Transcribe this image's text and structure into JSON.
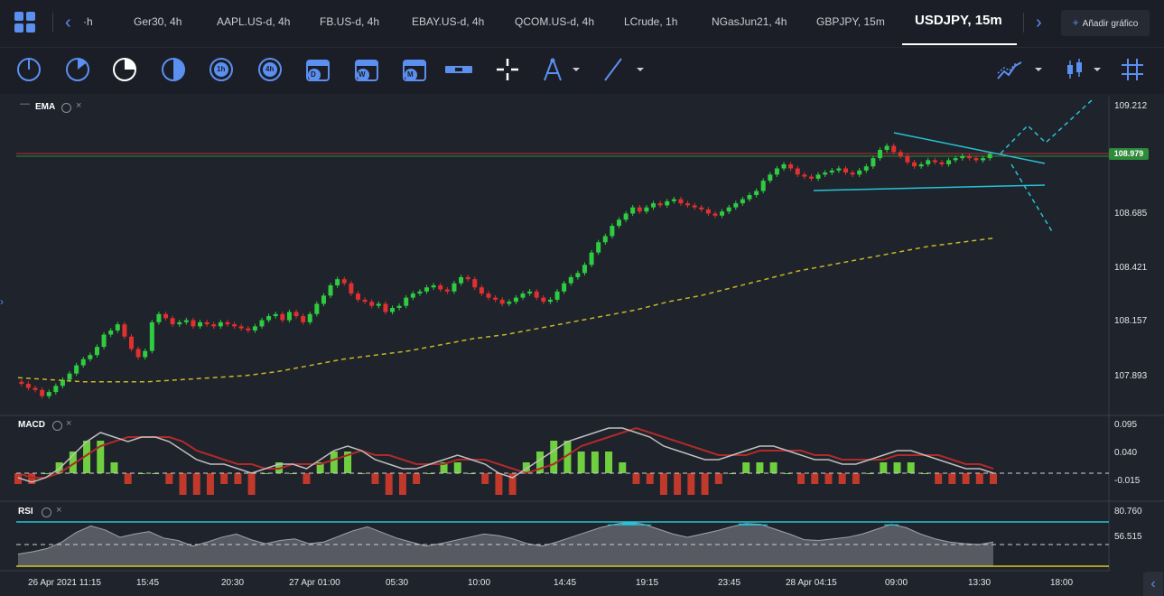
{
  "tabs": {
    "items": [
      "·h",
      "Ger30, 4h",
      "AAPL.US-d, 4h",
      "FB.US-d, 4h",
      "EBAY.US-d, 4h",
      "QCOM.US-d, 4h",
      "LCrude, 1h",
      "NGasJun21, 4h",
      "GBPJPY, 15m",
      "USDJPY, 15m"
    ],
    "active_index": 9,
    "add_chart_label": "Añadir gráfico",
    "add_chart_plus": "+"
  },
  "toolbar": {
    "tools": [
      "timeframe-1-icon",
      "timeframe-2-icon",
      "timeframe-3-icon",
      "timeframe-4-icon",
      "timeframe-1h-icon",
      "timeframe-4h-icon",
      "calendar-day-icon",
      "calendar-week-icon",
      "calendar-month-icon",
      "ruler-icon",
      "crosshair-icon",
      "compass-icon",
      "trendline-icon",
      "chart-type-icon",
      "candlestick-icon",
      "grid-icon"
    ],
    "label_1h": "1h",
    "label_4h": "4h",
    "label_d": "D",
    "label_w": "W",
    "label_m": "M"
  },
  "indicators": {
    "ema_label": "EMA",
    "macd_label": "MACD",
    "rsi_label": "RSI",
    "close_glyph": "×",
    "collapse_glyph": "—"
  },
  "price_axis": {
    "labels": [
      "109.212",
      "108.685",
      "108.421",
      "108.157",
      "107.893"
    ],
    "current_price": "108.979",
    "current_price_color": "#2e8b3a"
  },
  "macd_axis": {
    "labels": [
      "0.095",
      "0.040",
      "-0.015"
    ]
  },
  "rsi_axis": {
    "labels": [
      "80.760",
      "56.515"
    ]
  },
  "time_axis": {
    "labels": [
      "26 Apr 2021 11:15",
      "15:45",
      "20:30",
      "27 Apr 01:00",
      "05:30",
      "10:00",
      "14:45",
      "19:15",
      "23:45",
      "28 Apr 04:15",
      "09:00",
      "13:30",
      "18:00"
    ]
  },
  "colors": {
    "accent": "#5b8ff0",
    "bull": "#2ecc40",
    "bear": "#e0302f",
    "ema": "#c8b52a",
    "trendline": "#27c2d6",
    "rsi_band": "#27c2d6"
  },
  "chart_data": {
    "type": "candlestick",
    "symbol": "USDJPY, 15m",
    "ylim": [
      107.75,
      109.26
    ],
    "close_series": [
      107.86,
      107.84,
      107.83,
      107.8,
      107.82,
      107.85,
      107.88,
      107.91,
      107.95,
      107.98,
      108.0,
      108.04,
      108.1,
      108.12,
      108.15,
      108.09,
      108.03,
      107.99,
      108.02,
      108.16,
      108.2,
      108.18,
      108.15,
      108.16,
      108.17,
      108.14,
      108.16,
      108.15,
      108.14,
      108.16,
      108.15,
      108.14,
      108.13,
      108.12,
      108.14,
      108.17,
      108.19,
      108.2,
      108.17,
      108.21,
      108.19,
      108.16,
      108.2,
      108.25,
      108.29,
      108.34,
      108.37,
      108.35,
      108.3,
      108.27,
      108.26,
      108.24,
      108.25,
      108.21,
      108.23,
      108.24,
      108.28,
      108.3,
      108.31,
      108.33,
      108.34,
      108.32,
      108.31,
      108.35,
      108.38,
      108.37,
      108.33,
      108.3,
      108.28,
      108.27,
      108.25,
      108.26,
      108.28,
      108.3,
      108.31,
      108.28,
      108.26,
      108.27,
      108.31,
      108.35,
      108.38,
      108.4,
      108.44,
      108.5,
      108.55,
      108.58,
      108.63,
      108.66,
      108.69,
      108.72,
      108.7,
      108.72,
      108.74,
      108.73,
      108.75,
      108.76,
      108.74,
      108.73,
      108.72,
      108.71,
      108.69,
      108.68,
      108.7,
      108.72,
      108.74,
      108.76,
      108.78,
      108.8,
      108.85,
      108.88,
      108.91,
      108.93,
      108.91,
      108.88,
      108.87,
      108.86,
      108.88,
      108.89,
      108.9,
      108.91,
      108.89,
      108.88,
      108.9,
      108.92,
      108.96,
      109.0,
      109.02,
      108.99,
      108.97,
      108.94,
      108.92,
      108.93,
      108.95,
      108.94,
      108.93,
      108.95,
      108.96,
      108.97,
      108.96,
      108.95,
      108.96,
      108.98
    ],
    "ema_series": [
      107.89,
      107.88,
      107.87,
      107.87,
      107.87,
      107.88,
      107.89,
      107.9,
      107.92,
      107.95,
      107.98,
      108.0,
      108.02,
      108.05,
      108.08,
      108.1,
      108.13,
      108.16,
      108.19,
      108.22,
      108.26,
      108.29,
      108.33,
      108.37,
      108.41,
      108.44,
      108.47,
      108.5,
      108.53,
      108.55,
      108.57
    ],
    "macd_series": [
      -0.01,
      -0.02,
      -0.01,
      0.01,
      0.04,
      0.07,
      0.09,
      0.08,
      0.07,
      0.08,
      0.08,
      0.07,
      0.05,
      0.03,
      0.02,
      0.02,
      0.01,
      0.0,
      0.01,
      0.02,
      0.02,
      0.01,
      0.03,
      0.05,
      0.06,
      0.05,
      0.03,
      0.02,
      0.01,
      0.01,
      0.02,
      0.03,
      0.04,
      0.03,
      0.02,
      0.0,
      -0.01,
      0.01,
      0.03,
      0.05,
      0.07,
      0.08,
      0.09,
      0.1,
      0.1,
      0.09,
      0.08,
      0.06,
      0.05,
      0.04,
      0.03,
      0.03,
      0.04,
      0.05,
      0.06,
      0.06,
      0.05,
      0.04,
      0.03,
      0.03,
      0.02,
      0.02,
      0.03,
      0.04,
      0.05,
      0.05,
      0.04,
      0.03,
      0.02,
      0.01,
      0.01,
      0.0
    ],
    "macd_signal": [
      0.0,
      -0.01,
      -0.01,
      0.0,
      0.02,
      0.04,
      0.06,
      0.07,
      0.08,
      0.08,
      0.08,
      0.08,
      0.07,
      0.05,
      0.04,
      0.03,
      0.02,
      0.02,
      0.01,
      0.01,
      0.02,
      0.02,
      0.02,
      0.03,
      0.04,
      0.05,
      0.04,
      0.04,
      0.03,
      0.02,
      0.02,
      0.02,
      0.03,
      0.03,
      0.03,
      0.02,
      0.01,
      0.0,
      0.01,
      0.02,
      0.04,
      0.06,
      0.07,
      0.08,
      0.09,
      0.1,
      0.09,
      0.08,
      0.07,
      0.06,
      0.05,
      0.04,
      0.04,
      0.04,
      0.05,
      0.05,
      0.05,
      0.05,
      0.04,
      0.04,
      0.03,
      0.03,
      0.03,
      0.03,
      0.04,
      0.04,
      0.04,
      0.04,
      0.03,
      0.02,
      0.02,
      0.01
    ],
    "rsi_series": [
      45,
      48,
      52,
      60,
      72,
      80,
      75,
      66,
      70,
      73,
      65,
      62,
      55,
      60,
      66,
      70,
      63,
      58,
      62,
      64,
      58,
      60,
      67,
      74,
      79,
      72,
      65,
      60,
      55,
      58,
      62,
      66,
      70,
      68,
      64,
      58,
      55,
      60,
      66,
      72,
      78,
      82,
      85,
      82,
      76,
      70,
      66,
      70,
      74,
      79,
      83,
      82,
      76,
      70,
      63,
      62,
      64,
      66,
      70,
      76,
      82,
      78,
      70,
      64,
      60,
      58,
      57,
      60
    ]
  }
}
